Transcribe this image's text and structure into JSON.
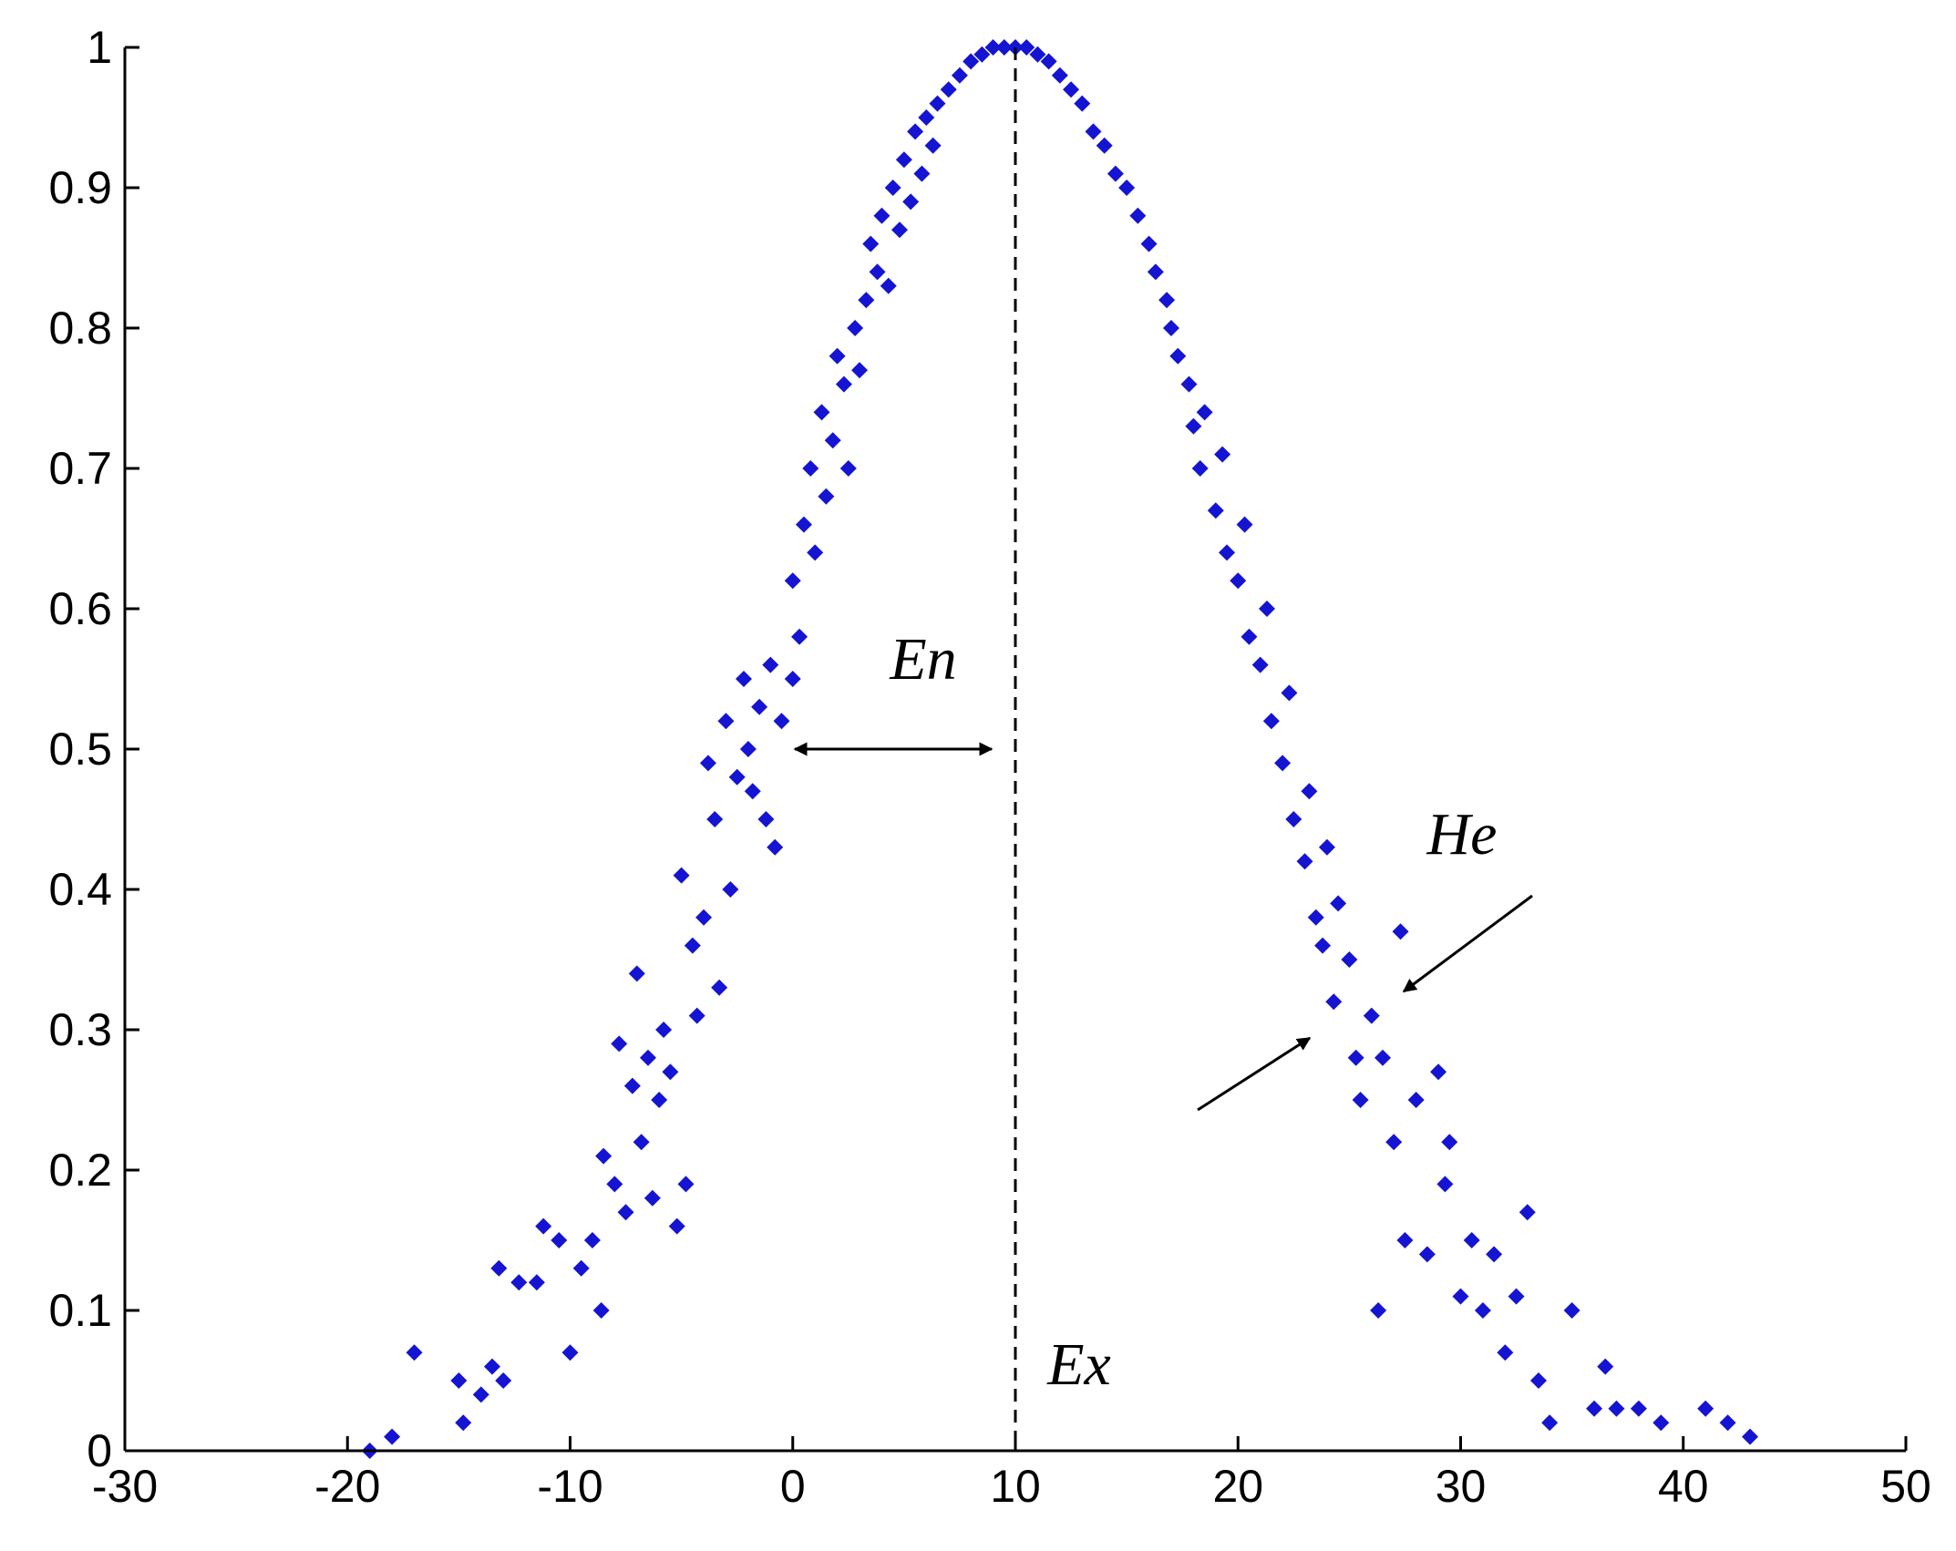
{
  "chart_data": {
    "type": "scatter",
    "color": "#1414d2",
    "x": [
      -19,
      -18,
      -17,
      -15,
      -14.8,
      -14,
      -13.5,
      -13.2,
      -13,
      -12.3,
      -11.5,
      -11.2,
      -10.5,
      -10,
      -9.5,
      -9,
      -8.6,
      -8.5,
      -8,
      -7.8,
      -7.5,
      -7.2,
      -7,
      -6.8,
      -6.5,
      -6.3,
      -6,
      -5.8,
      -5.5,
      -5.2,
      -5,
      -4.8,
      -4.5,
      -4.3,
      -4,
      -3.8,
      -3.5,
      -3.3,
      -3,
      -2.8,
      -2.5,
      -2.2,
      -2,
      -1.8,
      -1.5,
      -1.2,
      -1,
      -0.8,
      -0.5,
      0,
      0,
      0.3,
      0.5,
      0.8,
      1,
      1.3,
      1.5,
      1.8,
      2,
      2.3,
      2.5,
      2.8,
      3,
      3.3,
      3.5,
      3.8,
      4,
      4.3,
      4.5,
      4.8,
      5,
      5.3,
      5.5,
      5.8,
      6,
      6.3,
      6.5,
      7,
      7.5,
      8,
      8.5,
      9,
      9.5,
      10,
      10.5,
      11,
      11.5,
      12,
      12.5,
      13,
      13.5,
      14,
      14.5,
      15,
      15.5,
      16,
      16.3,
      16.8,
      17,
      17.3,
      17.8,
      18,
      18.3,
      18.5,
      19,
      19.3,
      19.5,
      20,
      20.3,
      20.5,
      21,
      21.3,
      21.5,
      22,
      22.3,
      22.5,
      23,
      23.2,
      23.5,
      23.8,
      24,
      24.3,
      24.5,
      25,
      25.3,
      25.5,
      26,
      26.3,
      26.5,
      27,
      27.3,
      27.5,
      28,
      28.5,
      29,
      29.3,
      29.5,
      30,
      30.5,
      31,
      31.5,
      32,
      32.5,
      33,
      33.5,
      34,
      35,
      36,
      36.5,
      37,
      38,
      39,
      41,
      42,
      43
    ],
    "y": [
      0,
      0.01,
      0.07,
      0.05,
      0.02,
      0.04,
      0.06,
      0.13,
      0.05,
      0.12,
      0.12,
      0.16,
      0.15,
      0.07,
      0.13,
      0.15,
      0.1,
      0.21,
      0.19,
      0.29,
      0.17,
      0.26,
      0.34,
      0.22,
      0.28,
      0.18,
      0.25,
      0.3,
      0.27,
      0.16,
      0.41,
      0.19,
      0.36,
      0.31,
      0.38,
      0.49,
      0.45,
      0.33,
      0.52,
      0.4,
      0.48,
      0.55,
      0.5,
      0.47,
      0.53,
      0.45,
      0.56,
      0.43,
      0.52,
      0.55,
      0.62,
      0.58,
      0.66,
      0.7,
      0.64,
      0.74,
      0.68,
      0.72,
      0.78,
      0.76,
      0.7,
      0.8,
      0.77,
      0.82,
      0.86,
      0.84,
      0.88,
      0.83,
      0.9,
      0.87,
      0.92,
      0.89,
      0.94,
      0.91,
      0.95,
      0.93,
      0.96,
      0.97,
      0.98,
      0.99,
      0.995,
      1,
      1,
      1,
      1,
      0.995,
      0.99,
      0.98,
      0.97,
      0.96,
      0.94,
      0.93,
      0.91,
      0.9,
      0.88,
      0.86,
      0.84,
      0.82,
      0.8,
      0.78,
      0.76,
      0.73,
      0.7,
      0.74,
      0.67,
      0.71,
      0.64,
      0.62,
      0.66,
      0.58,
      0.56,
      0.6,
      0.52,
      0.49,
      0.54,
      0.45,
      0.42,
      0.47,
      0.38,
      0.36,
      0.43,
      0.32,
      0.39,
      0.35,
      0.28,
      0.25,
      0.31,
      0.1,
      0.28,
      0.22,
      0.37,
      0.15,
      0.25,
      0.14,
      0.27,
      0.19,
      0.22,
      0.11,
      0.15,
      0.1,
      0.14,
      0.07,
      0.11,
      0.17,
      0.05,
      0.02,
      0.1,
      0.03,
      0.06,
      0.03,
      0.03,
      0.02,
      0.03,
      0.02,
      0.01
    ],
    "xlim": [
      -30,
      50
    ],
    "xticks": [
      -30,
      -20,
      -10,
      0,
      10,
      20,
      30,
      40,
      50
    ],
    "ylim": [
      0,
      1
    ],
    "yticks": [
      0,
      0.1,
      0.2,
      0.3,
      0.4,
      0.5,
      0.6,
      0.7,
      0.8,
      0.9,
      1
    ],
    "annotations": [
      "En",
      "He",
      "Ex"
    ]
  }
}
